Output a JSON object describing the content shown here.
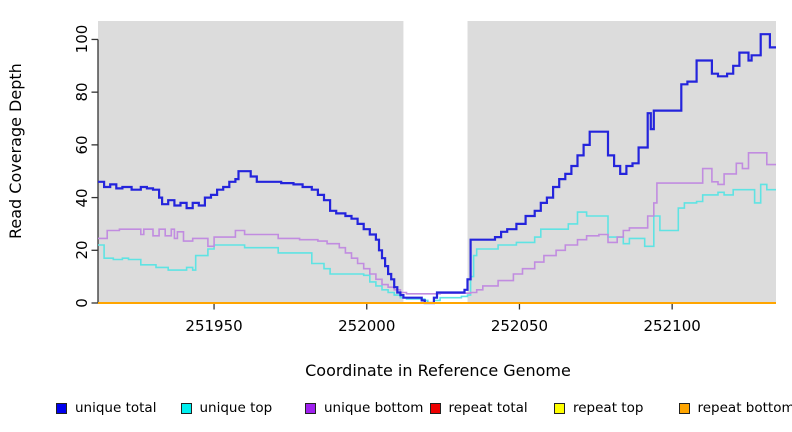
{
  "y_axis": {
    "label": "Read Coverage Depth",
    "ticks": [
      "0",
      "20",
      "40",
      "60",
      "80",
      "100"
    ]
  },
  "x_axis": {
    "label": "Coordinate in Reference Genome",
    "ticks": [
      "251950",
      "252000",
      "252050",
      "252100"
    ]
  },
  "colors": {
    "plot_bg": "#DCDCDC",
    "gap_band": "#FFFFFF",
    "axis": "#333333"
  },
  "legend": {
    "items": [
      {
        "label": "unique total",
        "color": "#0000EE"
      },
      {
        "label": "unique top",
        "color": "#00EEEE"
      },
      {
        "label": "unique bottom",
        "color": "#A020F0"
      },
      {
        "label": "repeat total",
        "color": "#EE0000"
      },
      {
        "label": "repeat top",
        "color": "#FFFF00"
      },
      {
        "label": "repeat bottom",
        "color": "#FFA500"
      }
    ]
  },
  "chart_data": {
    "type": "line",
    "step": true,
    "title": "",
    "xlabel": "Coordinate in Reference Genome",
    "ylabel": "Read Coverage Depth",
    "x_range": [
      251912,
      252134
    ],
    "ylim": [
      0,
      107
    ],
    "x_ticks": [
      251950,
      252000,
      252050,
      252100
    ],
    "y_ticks": [
      0,
      20,
      40,
      60,
      80,
      100
    ],
    "grid": false,
    "legend_position": "bottom",
    "gap_region": [
      252012,
      252033
    ],
    "draw_order": [
      1,
      2,
      0,
      3,
      4,
      5
    ],
    "series": [
      {
        "name": "unique total",
        "color": "#2424DC",
        "line_width": 2.2,
        "points": [
          [
            251912,
            46
          ],
          [
            251914,
            44
          ],
          [
            251916,
            45
          ],
          [
            251918,
            43.5
          ],
          [
            251920,
            44
          ],
          [
            251923,
            43
          ],
          [
            251926,
            44
          ],
          [
            251928,
            43.5
          ],
          [
            251930,
            43
          ],
          [
            251932,
            40
          ],
          [
            251933,
            37.5
          ],
          [
            251935,
            39
          ],
          [
            251937,
            37
          ],
          [
            251939,
            38
          ],
          [
            251941,
            36
          ],
          [
            251943,
            38
          ],
          [
            251945,
            37
          ],
          [
            251947,
            40
          ],
          [
            251949,
            41
          ],
          [
            251951,
            43
          ],
          [
            251953,
            44
          ],
          [
            251955,
            46
          ],
          [
            251957,
            47
          ],
          [
            251958,
            50
          ],
          [
            251962,
            48
          ],
          [
            251964,
            46
          ],
          [
            251972,
            45.5
          ],
          [
            251976,
            45
          ],
          [
            251979,
            44
          ],
          [
            251982,
            43
          ],
          [
            251984,
            41
          ],
          [
            251986,
            39
          ],
          [
            251988,
            35
          ],
          [
            251990,
            34
          ],
          [
            251993,
            33
          ],
          [
            251995,
            32
          ],
          [
            251997,
            30
          ],
          [
            251999,
            28
          ],
          [
            252001,
            26
          ],
          [
            252003,
            24
          ],
          [
            252004,
            20
          ],
          [
            252005,
            17
          ],
          [
            252006,
            14
          ],
          [
            252007,
            11
          ],
          [
            252008,
            9
          ],
          [
            252009,
            6
          ],
          [
            252010,
            4
          ],
          [
            252011,
            3
          ],
          [
            252012,
            2
          ],
          [
            252018,
            1
          ],
          [
            252019,
            0
          ],
          [
            252022,
            2
          ],
          [
            252023,
            4
          ],
          [
            252031,
            4
          ],
          [
            252032,
            5
          ],
          [
            252033,
            9
          ],
          [
            252034,
            24
          ],
          [
            252042,
            25
          ],
          [
            252044,
            27
          ],
          [
            252046,
            28
          ],
          [
            252049,
            30
          ],
          [
            252052,
            33
          ],
          [
            252055,
            35
          ],
          [
            252057,
            38
          ],
          [
            252059,
            40
          ],
          [
            252061,
            44
          ],
          [
            252063,
            47
          ],
          [
            252065,
            49
          ],
          [
            252067,
            52
          ],
          [
            252069,
            56
          ],
          [
            252071,
            60
          ],
          [
            252073,
            65
          ],
          [
            252079,
            56
          ],
          [
            252081,
            52
          ],
          [
            252083,
            49
          ],
          [
            252085,
            52
          ],
          [
            252087,
            53
          ],
          [
            252089,
            59
          ],
          [
            252092,
            72
          ],
          [
            252093,
            66
          ],
          [
            252094,
            73
          ],
          [
            252103,
            83
          ],
          [
            252105,
            84
          ],
          [
            252108,
            92
          ],
          [
            252113,
            87
          ],
          [
            252115,
            86
          ],
          [
            252118,
            87
          ],
          [
            252120,
            90
          ],
          [
            252122,
            95
          ],
          [
            252125,
            92
          ],
          [
            252126,
            94
          ],
          [
            252129,
            102
          ],
          [
            252132,
            97
          ]
        ]
      },
      {
        "name": "unique top",
        "color": "#5FE3E3",
        "line_width": 1.6,
        "points": [
          [
            251912,
            22
          ],
          [
            251914,
            17
          ],
          [
            251917,
            16.5
          ],
          [
            251920,
            17
          ],
          [
            251922,
            16.5
          ],
          [
            251926,
            14.5
          ],
          [
            251931,
            13.5
          ],
          [
            251935,
            12.5
          ],
          [
            251941,
            13.5
          ],
          [
            251943,
            12.5
          ],
          [
            251944,
            18
          ],
          [
            251948,
            20.5
          ],
          [
            251950,
            22
          ],
          [
            251960,
            21
          ],
          [
            251971,
            19
          ],
          [
            251982,
            15
          ],
          [
            251986,
            13
          ],
          [
            251988,
            11
          ],
          [
            251999,
            10.5
          ],
          [
            252001,
            8
          ],
          [
            252003,
            6.5
          ],
          [
            252005,
            5
          ],
          [
            252007,
            4
          ],
          [
            252009,
            3
          ],
          [
            252011,
            2
          ],
          [
            252013,
            1.5
          ],
          [
            252019,
            1
          ],
          [
            252020,
            0
          ],
          [
            252022,
            1
          ],
          [
            252024,
            2
          ],
          [
            252031,
            2.5
          ],
          [
            252033,
            3
          ],
          [
            252034,
            10
          ],
          [
            252035,
            18
          ],
          [
            252036,
            20.5
          ],
          [
            252043,
            22
          ],
          [
            252049,
            23
          ],
          [
            252055,
            25
          ],
          [
            252057,
            28
          ],
          [
            252066,
            30
          ],
          [
            252069,
            34.5
          ],
          [
            252072,
            33
          ],
          [
            252079,
            25
          ],
          [
            252084,
            22.5
          ],
          [
            252086,
            24.5
          ],
          [
            252091,
            21.5
          ],
          [
            252094,
            33
          ],
          [
            252096,
            27.5
          ],
          [
            252102,
            36
          ],
          [
            252104,
            38
          ],
          [
            252108,
            38.5
          ],
          [
            252110,
            41
          ],
          [
            252115,
            42
          ],
          [
            252117,
            41
          ],
          [
            252120,
            43
          ],
          [
            252127,
            38
          ],
          [
            252129,
            45
          ],
          [
            252131,
            43
          ]
        ]
      },
      {
        "name": "unique bottom",
        "color": "#C18CE0",
        "line_width": 1.6,
        "points": [
          [
            251912,
            24.5
          ],
          [
            251915,
            27.5
          ],
          [
            251919,
            28
          ],
          [
            251926,
            26
          ],
          [
            251927,
            28
          ],
          [
            251930,
            25.5
          ],
          [
            251932,
            28
          ],
          [
            251934,
            25.5
          ],
          [
            251936,
            28
          ],
          [
            251937,
            24.5
          ],
          [
            251938,
            27
          ],
          [
            251940,
            23.5
          ],
          [
            251943,
            24.5
          ],
          [
            251948,
            21.5
          ],
          [
            251950,
            25
          ],
          [
            251957,
            27.5
          ],
          [
            251960,
            26
          ],
          [
            251971,
            24.5
          ],
          [
            251978,
            24
          ],
          [
            251984,
            23.5
          ],
          [
            251987,
            22.5
          ],
          [
            251991,
            21
          ],
          [
            251993,
            19
          ],
          [
            251995,
            17
          ],
          [
            251997,
            15
          ],
          [
            251999,
            13
          ],
          [
            252001,
            11
          ],
          [
            252003,
            9
          ],
          [
            252005,
            7
          ],
          [
            252007,
            6
          ],
          [
            252009,
            5
          ],
          [
            252011,
            4
          ],
          [
            252013,
            3.5
          ],
          [
            252024,
            3.7
          ],
          [
            252034,
            4
          ],
          [
            252036,
            5
          ],
          [
            252038,
            6.5
          ],
          [
            252043,
            8.5
          ],
          [
            252048,
            11
          ],
          [
            252051,
            13
          ],
          [
            252055,
            15.5
          ],
          [
            252058,
            18
          ],
          [
            252062,
            20
          ],
          [
            252065,
            22
          ],
          [
            252069,
            24
          ],
          [
            252072,
            25.5
          ],
          [
            252076,
            26
          ],
          [
            252079,
            23
          ],
          [
            252082,
            25
          ],
          [
            252084,
            27.5
          ],
          [
            252086,
            28.5
          ],
          [
            252092,
            33
          ],
          [
            252094,
            38
          ],
          [
            252095,
            45.5
          ],
          [
            252110,
            51
          ],
          [
            252113,
            46
          ],
          [
            252115,
            45
          ],
          [
            252117,
            49
          ],
          [
            252121,
            53
          ],
          [
            252123,
            51
          ],
          [
            252125,
            57
          ],
          [
            252131,
            52.5
          ]
        ]
      },
      {
        "name": "repeat total",
        "color": "#DD0000",
        "line_width": 1.6,
        "points": [
          [
            251912,
            0
          ]
        ]
      },
      {
        "name": "repeat top",
        "color": "#EEEE00",
        "line_width": 1.6,
        "points": [
          [
            251912,
            0
          ]
        ]
      },
      {
        "name": "repeat bottom",
        "color": "#FFA500",
        "line_width": 2,
        "points": [
          [
            251912,
            0
          ]
        ]
      }
    ]
  }
}
